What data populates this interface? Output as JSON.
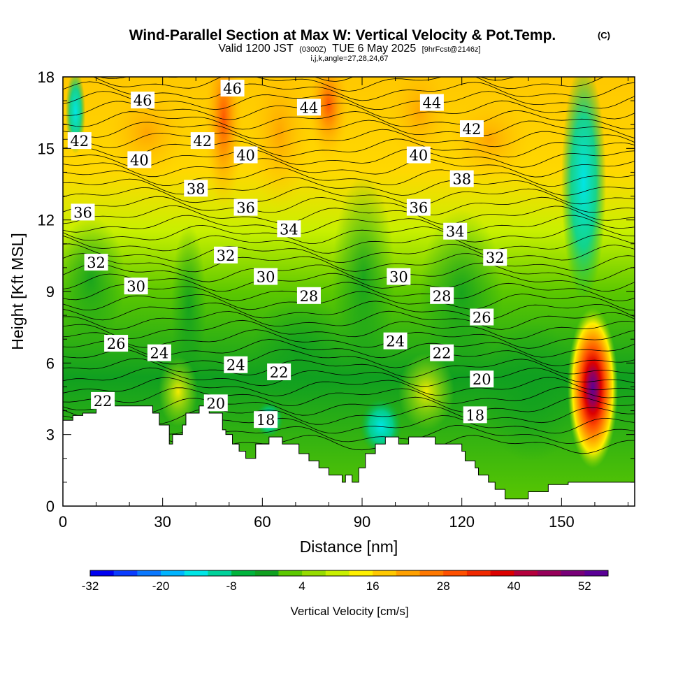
{
  "title": "Wind-Parallel Section at Max W: Vertical Velocity & Pot.Temp.",
  "title_tag": "(C)",
  "subtitle": {
    "prefix": "Valid 1200 JST",
    "zulu": "(0300Z)",
    "date": "TUE 6 May 2025",
    "fcst": "[9hrFcst@2146z]"
  },
  "indices_line": "i,j,k,angle=27,28,24,67",
  "chart_data": {
    "type": "heatmap",
    "xlabel": "Distance [nm]",
    "ylabel": "Height [Kft MSL]",
    "xlim": [
      0,
      172
    ],
    "ylim": [
      0,
      18
    ],
    "x_ticks": [
      0,
      30,
      60,
      90,
      120,
      150
    ],
    "y_ticks": [
      0,
      3,
      6,
      9,
      12,
      15,
      18
    ],
    "shaded_variable": "Vertical Velocity [cm/s]",
    "colorbar": {
      "label": "Vertical Velocity [cm/s]",
      "min": -32,
      "max": 56,
      "step": 4,
      "tick_labels": [
        "-32",
        "-20",
        "-8",
        "4",
        "16",
        "28",
        "40",
        "52"
      ],
      "tick_values": [
        -32,
        -20,
        -8,
        4,
        16,
        28,
        40,
        52
      ],
      "colors": [
        "#0000f0",
        "#0a3cff",
        "#0a78ff",
        "#00b4ff",
        "#00e6e6",
        "#00d29a",
        "#00b43c",
        "#10a020",
        "#5cc800",
        "#96dc00",
        "#c8f000",
        "#fff000",
        "#ffc800",
        "#ffa000",
        "#ff7800",
        "#ff5000",
        "#f02800",
        "#dc0000",
        "#b4003c",
        "#96005a",
        "#780078",
        "#5a0096"
      ]
    },
    "contour_variable": "Potential Temperature",
    "contour_labels": [
      {
        "x": 24,
        "y": 17.0,
        "text": "46"
      },
      {
        "x": 51,
        "y": 17.5,
        "text": "46"
      },
      {
        "x": 5,
        "y": 15.3,
        "text": "42"
      },
      {
        "x": 42,
        "y": 15.3,
        "text": "42"
      },
      {
        "x": 23,
        "y": 14.5,
        "text": "40"
      },
      {
        "x": 55,
        "y": 14.7,
        "text": "40"
      },
      {
        "x": 74,
        "y": 16.7,
        "text": "44"
      },
      {
        "x": 111,
        "y": 16.9,
        "text": "44"
      },
      {
        "x": 123,
        "y": 15.8,
        "text": "42"
      },
      {
        "x": 107,
        "y": 14.7,
        "text": "40"
      },
      {
        "x": 40,
        "y": 13.3,
        "text": "38"
      },
      {
        "x": 120,
        "y": 13.7,
        "text": "38"
      },
      {
        "x": 6,
        "y": 12.3,
        "text": "36"
      },
      {
        "x": 55,
        "y": 12.5,
        "text": "36"
      },
      {
        "x": 107,
        "y": 12.5,
        "text": "36"
      },
      {
        "x": 68,
        "y": 11.6,
        "text": "34"
      },
      {
        "x": 118,
        "y": 11.5,
        "text": "34"
      },
      {
        "x": 49,
        "y": 10.5,
        "text": "32"
      },
      {
        "x": 10,
        "y": 10.2,
        "text": "32"
      },
      {
        "x": 130,
        "y": 10.4,
        "text": "32"
      },
      {
        "x": 22,
        "y": 9.2,
        "text": "30"
      },
      {
        "x": 61,
        "y": 9.6,
        "text": "30"
      },
      {
        "x": 101,
        "y": 9.6,
        "text": "30"
      },
      {
        "x": 74,
        "y": 8.8,
        "text": "28"
      },
      {
        "x": 114,
        "y": 8.8,
        "text": "28"
      },
      {
        "x": 126,
        "y": 7.9,
        "text": "26"
      },
      {
        "x": 16,
        "y": 6.8,
        "text": "26"
      },
      {
        "x": 29,
        "y": 6.4,
        "text": "24"
      },
      {
        "x": 52,
        "y": 5.9,
        "text": "24"
      },
      {
        "x": 100,
        "y": 6.9,
        "text": "24"
      },
      {
        "x": 114,
        "y": 6.4,
        "text": "22"
      },
      {
        "x": 65,
        "y": 5.6,
        "text": "22"
      },
      {
        "x": 12,
        "y": 4.4,
        "text": "22"
      },
      {
        "x": 126,
        "y": 5.3,
        "text": "20"
      },
      {
        "x": 46,
        "y": 4.3,
        "text": "20"
      },
      {
        "x": 61,
        "y": 3.6,
        "text": "18"
      },
      {
        "x": 124,
        "y": 3.8,
        "text": "18"
      }
    ],
    "terrain_profile": {
      "x": [
        0,
        3,
        3,
        6,
        6,
        10,
        10,
        27,
        27,
        29,
        29,
        32,
        32,
        33,
        33,
        36,
        36,
        37,
        37,
        41,
        41,
        44,
        44,
        48,
        48,
        49,
        49,
        51,
        51,
        53,
        53,
        55,
        55,
        58,
        58,
        62,
        62,
        66,
        66,
        71,
        71,
        74,
        74,
        77,
        77,
        80,
        80,
        84,
        84,
        85,
        85,
        87,
        87,
        89,
        89,
        91,
        91,
        94,
        94,
        97,
        97,
        101,
        101,
        104,
        104,
        112,
        112,
        114,
        114,
        120,
        120,
        121,
        121,
        124,
        124,
        125,
        125,
        128,
        128,
        130,
        130,
        133,
        133,
        140,
        140,
        146,
        146,
        152,
        152,
        158,
        158,
        162,
        162,
        172
      ],
      "y": [
        3.6,
        3.6,
        3.8,
        3.8,
        3.9,
        3.9,
        4.2,
        4.2,
        3.9,
        3.9,
        3.4,
        3.4,
        2.6,
        2.6,
        3.0,
        3.0,
        3.4,
        3.4,
        3.9,
        3.9,
        4.2,
        4.2,
        3.9,
        3.9,
        3.2,
        3.2,
        3.0,
        3.0,
        2.6,
        2.6,
        2.3,
        2.3,
        2.0,
        2.0,
        2.6,
        2.6,
        2.9,
        2.9,
        2.6,
        2.6,
        2.2,
        2.2,
        1.9,
        1.9,
        1.6,
        1.6,
        1.3,
        1.3,
        1.0,
        1.0,
        1.3,
        1.3,
        1.0,
        1.0,
        1.6,
        1.6,
        2.2,
        2.2,
        2.6,
        2.6,
        2.9,
        2.9,
        2.6,
        2.6,
        2.9,
        2.9,
        2.6,
        2.6,
        2.6,
        2.6,
        2.3,
        2.3,
        1.9,
        1.9,
        1.6,
        1.6,
        1.3,
        1.3,
        1.0,
        1.0,
        0.7,
        0.7,
        0.3,
        0.3,
        0.6,
        0.6,
        0.9,
        0.9,
        1.0,
        1.0,
        1.0,
        1.0,
        1.0,
        1.0
      ]
    }
  }
}
